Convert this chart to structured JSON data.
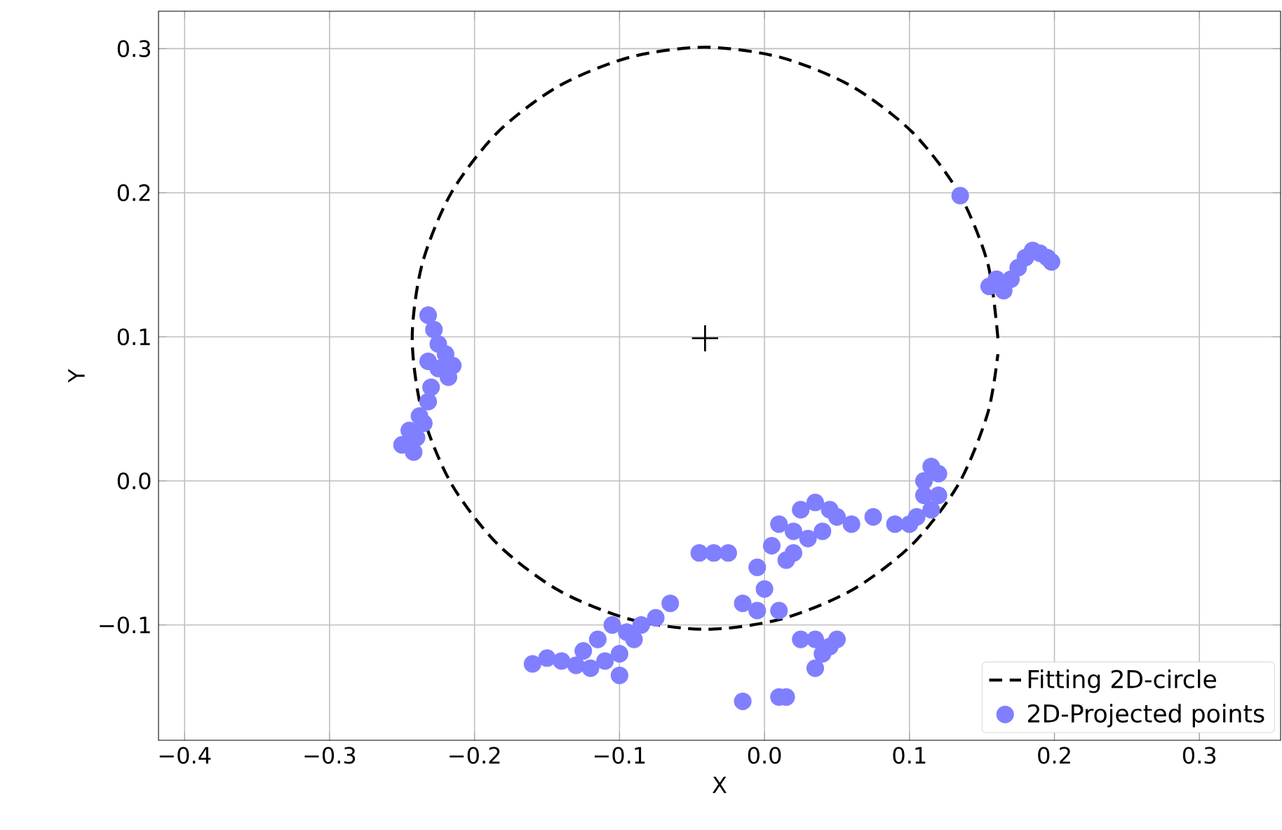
{
  "chart_data": {
    "type": "scatter",
    "xlabel": "X",
    "ylabel": "Y",
    "xlim": [
      -0.418,
      0.356
    ],
    "ylim": [
      -0.18,
      0.326
    ],
    "xticks": [
      {
        "value": -0.4,
        "label": "−0.4"
      },
      {
        "value": -0.3,
        "label": "−0.3"
      },
      {
        "value": -0.2,
        "label": "−0.2"
      },
      {
        "value": -0.1,
        "label": "−0.1"
      },
      {
        "value": 0.0,
        "label": "0.0"
      },
      {
        "value": 0.1,
        "label": "0.1"
      },
      {
        "value": 0.2,
        "label": "0.2"
      },
      {
        "value": 0.3,
        "label": "0.3"
      }
    ],
    "yticks": [
      {
        "value": -0.1,
        "label": "−0.1"
      },
      {
        "value": 0.0,
        "label": "0.0"
      },
      {
        "value": 0.1,
        "label": "0.1"
      },
      {
        "value": 0.2,
        "label": "0.2"
      },
      {
        "value": 0.3,
        "label": "0.3"
      }
    ],
    "grid": true,
    "legend": "bottom right",
    "series": [
      {
        "type": "scatter",
        "marker": "cross",
        "color": "#000000",
        "x": [
          -0.041
        ],
        "values": [
          0.099
        ]
      },
      {
        "name": "Fitting 2D-circle",
        "type": "line",
        "line_style": "dashed",
        "marker": "none",
        "color": "#000000",
        "x": [
          0.161,
          0.154,
          0.134,
          0.102,
          0.06,
          0.011,
          -0.041,
          -0.093,
          -0.142,
          -0.184,
          -0.216,
          -0.236,
          -0.243,
          -0.236,
          -0.216,
          -0.184,
          -0.142,
          -0.093,
          -0.041,
          0.011,
          0.06,
          0.102,
          0.134,
          0.154,
          0.161
        ],
        "values": [
          0.099,
          0.151,
          0.2,
          0.242,
          0.274,
          0.294,
          0.301,
          0.294,
          0.274,
          0.242,
          0.2,
          0.151,
          0.099,
          0.047,
          -0.002,
          -0.044,
          -0.076,
          -0.096,
          -0.103,
          -0.096,
          -0.076,
          -0.044,
          -0.002,
          0.047,
          0.088
        ]
      },
      {
        "name": "2D-Projected points",
        "type": "scatter",
        "marker": "circle",
        "color": "#7f7fff",
        "x": [
          -0.232,
          -0.228,
          -0.225,
          -0.22,
          -0.215,
          -0.225,
          -0.232,
          -0.218,
          -0.24,
          -0.245,
          -0.25,
          -0.235,
          -0.232,
          -0.238,
          -0.242,
          -0.23,
          -0.16,
          -0.15,
          -0.14,
          -0.13,
          -0.12,
          -0.11,
          -0.1,
          -0.115,
          -0.105,
          -0.095,
          -0.09,
          -0.085,
          -0.075,
          -0.065,
          -0.125,
          -0.1,
          -0.045,
          -0.035,
          -0.025,
          -0.015,
          -0.005,
          0.01,
          0.0,
          -0.005,
          0.005,
          0.01,
          0.02,
          0.025,
          0.035,
          0.045,
          0.05,
          0.06,
          0.075,
          0.09,
          0.1,
          0.015,
          0.02,
          0.03,
          0.04,
          0.025,
          0.035,
          0.04,
          0.035,
          0.045,
          0.05,
          -0.015,
          0.01,
          0.015,
          0.11,
          0.115,
          0.12,
          0.11,
          0.115,
          0.105,
          0.12,
          0.135,
          0.155,
          0.16,
          0.17,
          0.175,
          0.18,
          0.19,
          0.195,
          0.198,
          0.185,
          0.165
        ],
        "values": [
          0.115,
          0.105,
          0.095,
          0.088,
          0.08,
          0.078,
          0.083,
          0.072,
          0.03,
          0.035,
          0.025,
          0.04,
          0.055,
          0.045,
          0.02,
          0.065,
          -0.127,
          -0.123,
          -0.125,
          -0.128,
          -0.13,
          -0.125,
          -0.12,
          -0.11,
          -0.1,
          -0.105,
          -0.11,
          -0.1,
          -0.095,
          -0.085,
          -0.118,
          -0.135,
          -0.05,
          -0.05,
          -0.05,
          -0.085,
          -0.09,
          -0.09,
          -0.075,
          -0.06,
          -0.045,
          -0.03,
          -0.035,
          -0.02,
          -0.015,
          -0.02,
          -0.025,
          -0.03,
          -0.025,
          -0.03,
          -0.03,
          -0.055,
          -0.05,
          -0.04,
          -0.035,
          -0.11,
          -0.11,
          -0.12,
          -0.13,
          -0.115,
          -0.11,
          -0.153,
          -0.15,
          -0.15,
          0.0,
          0.01,
          0.005,
          -0.01,
          -0.02,
          -0.025,
          -0.01,
          0.198,
          0.135,
          0.14,
          0.14,
          0.148,
          0.155,
          0.158,
          0.155,
          0.152,
          0.16,
          0.132
        ]
      }
    ]
  }
}
